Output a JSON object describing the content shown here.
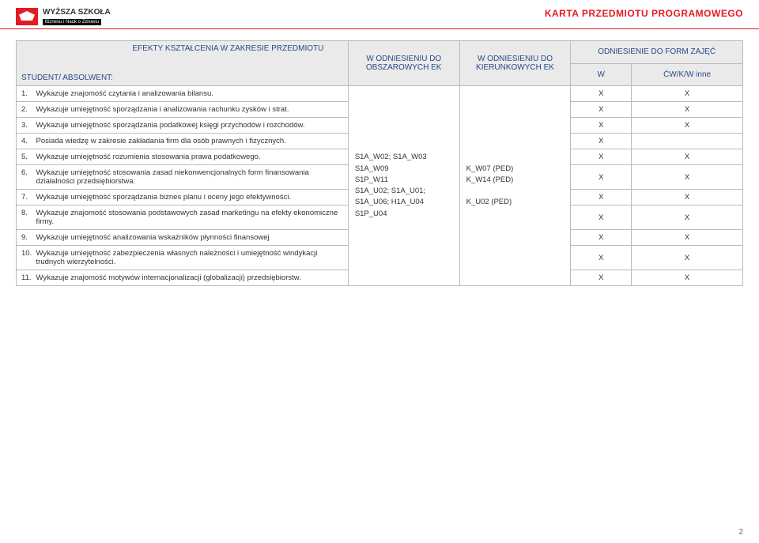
{
  "logo": {
    "main": "WYŻSZA SZKOŁA",
    "sub": "Biznesu i Nauk o Zdrowiu"
  },
  "doc_title": "KARTA PRZEDMIOTU PROGRAMOWEGO",
  "head": {
    "student": "STUDENT/ ABSOLWENT:",
    "efekty": "EFEKTY KSZTAŁCENIA W ZAKRESIE PRZEDMIOTU",
    "obs": "W ODNIESIENIU DO OBSZAROWYCH EK",
    "kier": "W ODNIESIENIU DO KIERUNKOWYCH EK",
    "form": "ODNIESIENIE DO FORM ZAJĘĆ",
    "w": "W",
    "cw": "ĆW/K/W  inne"
  },
  "codes": {
    "obs": "S1A_W02; S1A_W03\nS1A_W09\nS1P_W11\nS1A_U02; S1A_U01;\nS1A_U06; H1A_U04\nS1P_U04",
    "kier": "K_W07 (PED)\nK_W14 (PED)\n\nK_U02 (PED)"
  },
  "rows": [
    {
      "n": "1.",
      "d": "Wykazuje znajomość czytania i analizowania bilansu.",
      "w": "X",
      "cw": "X"
    },
    {
      "n": "2.",
      "d": "Wykazuje umiejętność sporządzania i analizowania rachunku zysków i strat.",
      "w": "X",
      "cw": "X"
    },
    {
      "n": "3.",
      "d": "Wykazuje umiejętność sporządzania podatkowej księgi przychodów i rozchodów.",
      "w": "X",
      "cw": "X"
    },
    {
      "n": "4.",
      "d": "Posiada wiedzę w zakresie zakładania firm dla osób prawnych i fizycznych.",
      "w": "X",
      "cw": ""
    },
    {
      "n": "5.",
      "d": "Wykazuje umiejętność rozumienia stosowania prawa podatkowego.",
      "w": "X",
      "cw": "X"
    },
    {
      "n": "6.",
      "d": "Wykazuje umiejętność stosowania zasad niekonwencjonalnych form finansowania działalności przedsiębiorstwa.",
      "w": "X",
      "cw": "X"
    },
    {
      "n": "7.",
      "d": "Wykazuje umiejętność sporządzania biznes planu i oceny jego efektywności.",
      "w": "X",
      "cw": "X"
    },
    {
      "n": "8.",
      "d": "Wykazuje znajomość stosowania podstawowych zasad marketingu na efekty ekonomiczne firmy.",
      "w": "X",
      "cw": "X"
    },
    {
      "n": "9.",
      "d": "Wykazuje umiejętność analizowania wskaźników płynności finansowej",
      "w": "X",
      "cw": "X"
    },
    {
      "n": "10.",
      "d": "Wykazuje umiejętność zabezpieczenia własnych należności i umiejętność windykacji trudnych wierzytelności.",
      "w": "X",
      "cw": "X"
    },
    {
      "n": "11.",
      "d": "Wykazuje znajomość motywów internacjonalizacji (globalizacji) przedsiębiorstw.",
      "w": "X",
      "cw": "X"
    }
  ],
  "page_num": "2"
}
